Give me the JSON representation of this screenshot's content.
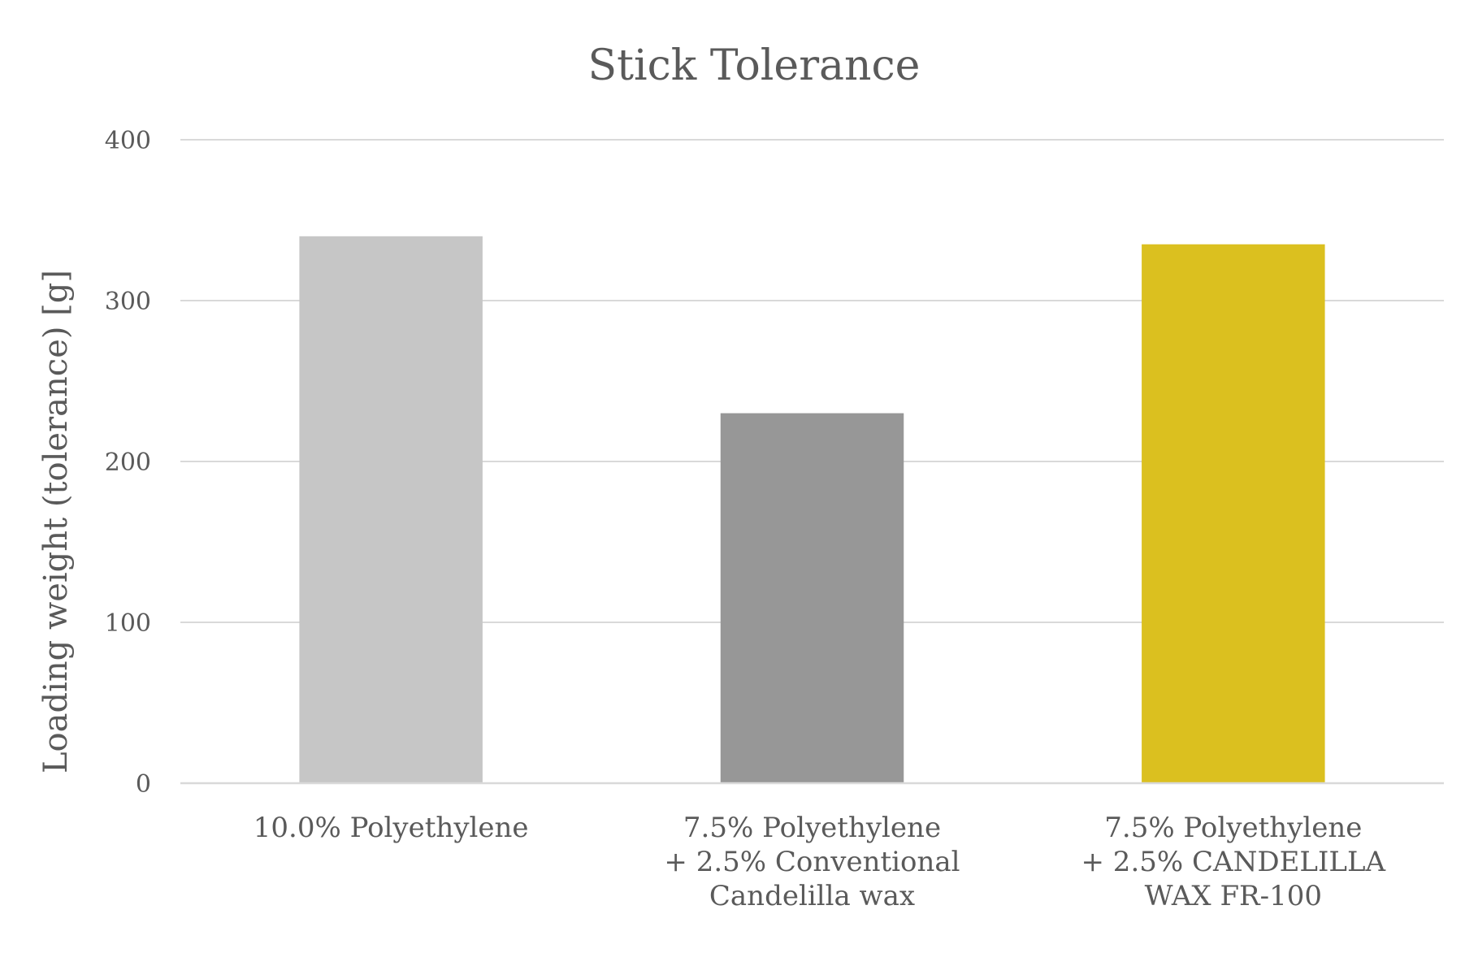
{
  "chart_data": {
    "type": "bar",
    "title": "Stick Tolerance",
    "xlabel": "",
    "ylabel": "Loading weight (tolerance) [g]",
    "ylim": [
      0,
      400
    ],
    "yticks": [
      0,
      100,
      200,
      300,
      400
    ],
    "grid": true,
    "legend": "none",
    "categories": [
      [
        "10.0% Polyethylene"
      ],
      [
        "7.5% Polyethylene",
        "+ 2.5% Conventional",
        "Candelilla wax"
      ],
      [
        "7.5% Polyethylene",
        "+ 2.5% CANDELILLA",
        "WAX FR-100"
      ]
    ],
    "values": [
      340,
      230,
      335
    ],
    "colors": [
      "#c6c6c6",
      "#979797",
      "#dbc01f"
    ]
  }
}
